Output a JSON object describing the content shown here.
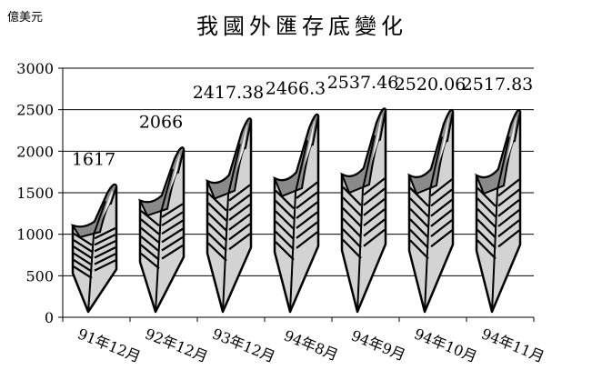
{
  "chart_data": {
    "type": "bar",
    "title": "我國外匯存底變化",
    "unit_label": "億美元",
    "xlabel": "",
    "ylabel": "",
    "ylim": [
      0,
      3000
    ],
    "yticks": [
      0,
      500,
      1000,
      1500,
      2000,
      2500,
      3000
    ],
    "grid": true,
    "legend": "none",
    "categories": [
      "91年12月",
      "92年12月",
      "93年12月",
      "94年8月",
      "94年9月",
      "94年10月",
      "94年11月"
    ],
    "values": [
      1617,
      2066,
      2417.38,
      2466.3,
      2537.46,
      2520.06,
      2517.83
    ],
    "data_labels": [
      "1617",
      "2066",
      "2417.38",
      "2466.3",
      "2537.46",
      "2520.06",
      "2517.83"
    ],
    "mark_style": "feather pictograph"
  }
}
